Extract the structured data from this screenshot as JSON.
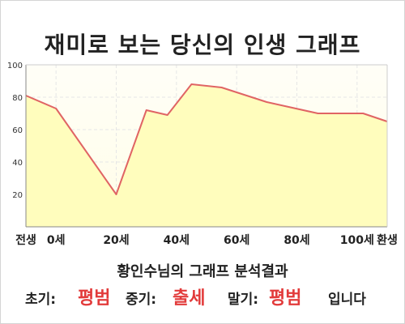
{
  "title": "재미로 보는 당신의 인생 그래프",
  "analysis": {
    "heading": "황인수님의 그래프 분석결과",
    "early_label": "초기:",
    "early_value": "평범",
    "middle_label": "중기:",
    "middle_value": "출세",
    "late_label": "말기:",
    "late_value": "평범",
    "suffix": "입니다"
  },
  "colors": {
    "line": "#e06464",
    "fill": "#fffdbd",
    "plot_bg_top": "#fffef6",
    "value_accent": "#e23b3b",
    "grid": "#e6e6e6",
    "axis": "#888888"
  },
  "chart_data": {
    "type": "area",
    "categories": [
      "전생",
      "0세",
      "20세",
      "40세",
      "60세",
      "80세",
      "100세",
      "환생"
    ],
    "x": [
      -10,
      0,
      20,
      40,
      60,
      80,
      100,
      110
    ],
    "series": [
      {
        "x": [
          -10,
          0,
          20,
          30,
          37,
          45,
          55,
          70,
          87,
          102,
          110
        ],
        "values": [
          81,
          73,
          20,
          72,
          69,
          88,
          86,
          77,
          70,
          70,
          65
        ]
      }
    ],
    "yticks": [
      20,
      40,
      60,
      80,
      100
    ],
    "ylim": [
      0,
      100
    ],
    "xlim": [
      -10,
      110
    ],
    "grid": true,
    "legend": "none",
    "xlabel": "",
    "ylabel": ""
  }
}
